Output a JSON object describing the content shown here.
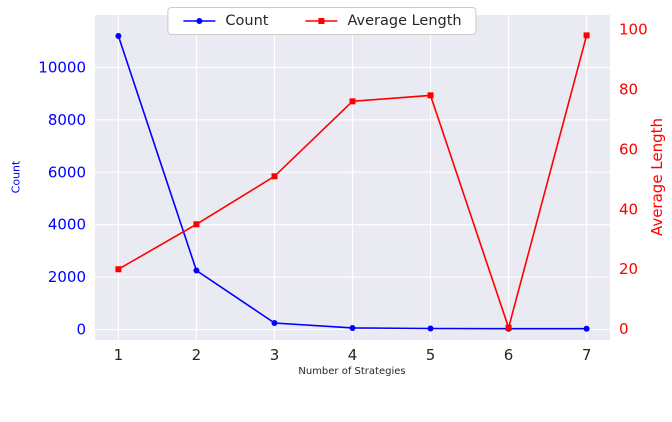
{
  "figure": {
    "background": "#ffffff",
    "plot_background": "#eaeaf2",
    "grid_color": "#ffffff",
    "tick_text_color": "#262626"
  },
  "chart_data": {
    "type": "line",
    "x": [
      1,
      2,
      3,
      4,
      5,
      6,
      7
    ],
    "x_ticks": [
      1,
      2,
      3,
      4,
      5,
      6,
      7
    ],
    "xlim": [
      0.7,
      7.3
    ],
    "xlabel": "Number of Strategies",
    "grid": true,
    "legend_position": "upper center",
    "axes": {
      "left": {
        "label": "Count",
        "color": "#0000ff",
        "ticks": [
          0,
          2000,
          4000,
          6000,
          8000,
          10000
        ],
        "lim": [
          -400,
          12000
        ]
      },
      "right": {
        "label": "Average Length",
        "color": "#ff0000",
        "ticks": [
          0,
          20,
          40,
          60,
          80,
          100
        ],
        "lim": [
          -3.6,
          104.8
        ]
      }
    },
    "series": [
      {
        "name": "Count",
        "axis": "left",
        "color": "#0000ff",
        "marker": "circle",
        "values": [
          11200,
          2250,
          250,
          60,
          40,
          30,
          30
        ]
      },
      {
        "name": "Average Length",
        "axis": "right",
        "color": "#ff0000",
        "marker": "square",
        "values": [
          20,
          35,
          51,
          76,
          78,
          0.5,
          98
        ]
      }
    ]
  }
}
